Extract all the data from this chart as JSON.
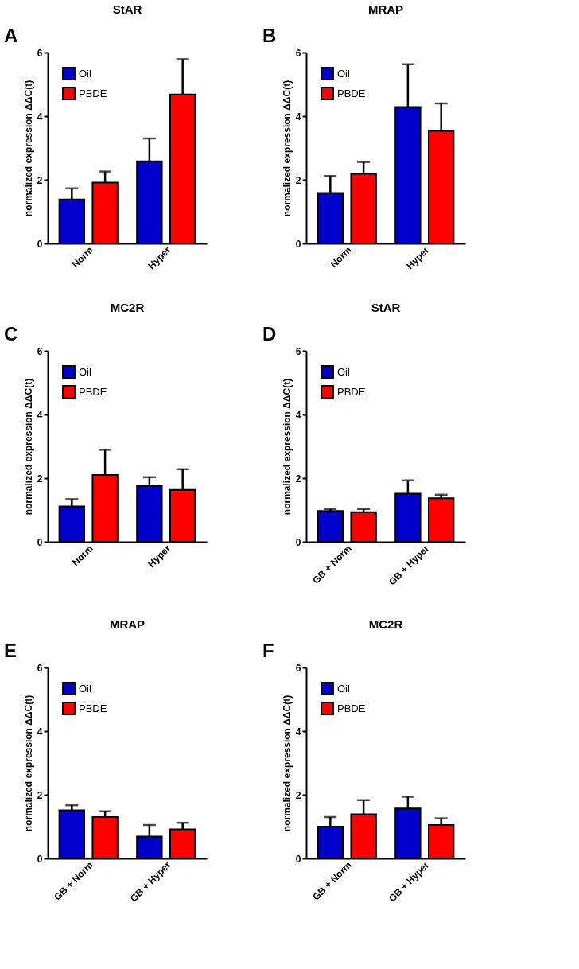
{
  "chart_data": [
    {
      "type": "bar",
      "title": "StAR",
      "annotations": [
        "A"
      ],
      "ylabel": "normalized expression ΔΔC(t)",
      "categories": [
        "Norm",
        "Hyper"
      ],
      "ylim": [
        0,
        6
      ],
      "yticks": [
        0,
        2,
        4,
        6
      ],
      "legend": "top left",
      "grid": false,
      "series": [
        {
          "name": "Oil",
          "color": "#0000cc",
          "values": [
            1.38,
            2.58
          ],
          "errors": [
            [
              1.38,
              1.73
            ],
            [
              2.58,
              3.3
            ]
          ]
        },
        {
          "name": "PBDE",
          "color": "#ff0000",
          "values": [
            1.91,
            4.68
          ],
          "errors": [
            [
              1.91,
              2.26
            ],
            [
              4.68,
              5.79
            ]
          ]
        }
      ]
    },
    {
      "type": "bar",
      "title": "MRAP",
      "annotations": [
        "B"
      ],
      "ylabel": "normalized expression ΔΔC(t)",
      "categories": [
        "Norm",
        "Hyper"
      ],
      "ylim": [
        0,
        6
      ],
      "yticks": [
        0,
        2,
        4,
        6
      ],
      "legend": "top left",
      "grid": false,
      "series": [
        {
          "name": "Oil",
          "color": "#0000cc",
          "values": [
            1.59,
            4.29
          ],
          "errors": [
            [
              1.59,
              2.12
            ],
            [
              4.29,
              5.63
            ]
          ]
        },
        {
          "name": "PBDE",
          "color": "#ff0000",
          "values": [
            2.19,
            3.54
          ],
          "errors": [
            [
              2.19,
              2.56
            ],
            [
              3.54,
              4.4
            ]
          ]
        }
      ]
    },
    {
      "type": "bar",
      "title": "MC2R",
      "annotations": [
        "C"
      ],
      "ylabel": "normalized expression ΔΔC(t)",
      "categories": [
        "Norm",
        "Hyper"
      ],
      "ylim": [
        0,
        6
      ],
      "yticks": [
        0,
        2,
        4,
        6
      ],
      "legend": "top left",
      "grid": false,
      "series": [
        {
          "name": "Oil",
          "color": "#0000cc",
          "values": [
            1.11,
            1.75
          ],
          "errors": [
            [
              1.11,
              1.34
            ],
            [
              1.75,
              2.03
            ]
          ]
        },
        {
          "name": "PBDE",
          "color": "#ff0000",
          "values": [
            2.1,
            1.63
          ],
          "errors": [
            [
              2.1,
              2.89
            ],
            [
              1.63,
              2.28
            ]
          ]
        }
      ]
    },
    {
      "type": "bar",
      "title": "StAR",
      "annotations": [
        "D"
      ],
      "ylabel": "normalized expression ΔΔC(t)",
      "categories": [
        "GB + Norm",
        "GB + Hyper"
      ],
      "ylim": [
        0,
        6
      ],
      "yticks": [
        0,
        2,
        4,
        6
      ],
      "legend": "top left",
      "grid": false,
      "series": [
        {
          "name": "Oil",
          "color": "#0000cc",
          "values": [
            0.97,
            1.51
          ],
          "errors": [
            [
              0.97,
              1.03
            ],
            [
              1.51,
              1.93
            ]
          ]
        },
        {
          "name": "PBDE",
          "color": "#ff0000",
          "values": [
            0.93,
            1.37
          ],
          "errors": [
            [
              0.93,
              1.03
            ],
            [
              1.37,
              1.48
            ]
          ]
        }
      ]
    },
    {
      "type": "bar",
      "title": "MRAP",
      "annotations": [
        "E"
      ],
      "ylabel": "normalized expression ΔΔC(t)",
      "categories": [
        "GB + Norm",
        "GB + Hyper"
      ],
      "ylim": [
        0,
        6
      ],
      "yticks": [
        0,
        2,
        4,
        6
      ],
      "legend": "top left",
      "grid": false,
      "series": [
        {
          "name": "Oil",
          "color": "#0000cc",
          "values": [
            1.51,
            0.69
          ],
          "errors": [
            [
              1.51,
              1.67
            ],
            [
              0.69,
              1.05
            ]
          ]
        },
        {
          "name": "PBDE",
          "color": "#ff0000",
          "values": [
            1.3,
            0.91
          ],
          "errors": [
            [
              1.3,
              1.48
            ],
            [
              0.91,
              1.12
            ]
          ]
        }
      ]
    },
    {
      "type": "bar",
      "title": "MC2R",
      "annotations": [
        "F"
      ],
      "ylabel": "normalized expression ΔΔC(t)",
      "categories": [
        "GB + Norm",
        "GB + Hyper"
      ],
      "ylim": [
        0,
        6
      ],
      "yticks": [
        0,
        2,
        4,
        6
      ],
      "legend": "top left",
      "grid": false,
      "series": [
        {
          "name": "Oil",
          "color": "#0000cc",
          "values": [
            1.0,
            1.57
          ],
          "errors": [
            [
              1.0,
              1.3
            ],
            [
              1.57,
              1.94
            ]
          ]
        },
        {
          "name": "PBDE",
          "color": "#ff0000",
          "values": [
            1.39,
            1.05
          ],
          "errors": [
            [
              1.39,
              1.83
            ],
            [
              1.05,
              1.26
            ]
          ]
        }
      ]
    }
  ]
}
